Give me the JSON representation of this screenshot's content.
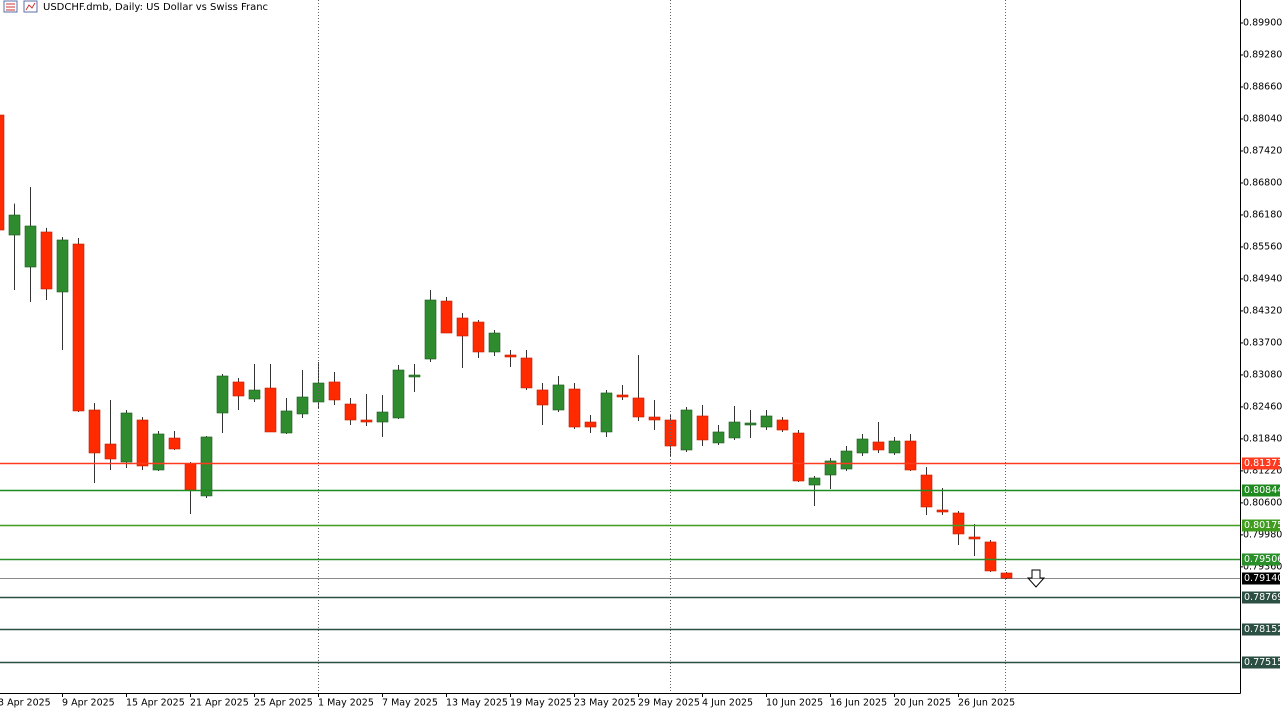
{
  "chart_data": {
    "type": "candlestick",
    "title": "USDCHF.dmb, Daily:  US Dollar vs Swiss Franc",
    "categories": [
      "3 Apr 2025",
      null,
      null,
      null,
      "9 Apr 2025",
      null,
      null,
      null,
      "15 Apr 2025",
      null,
      null,
      null,
      "21 Apr 2025",
      null,
      null,
      null,
      "25 Apr 2025",
      null,
      null,
      null,
      "1 May 2025",
      null,
      null,
      null,
      "7 May 2025",
      null,
      null,
      null,
      "13 May 2025",
      null,
      null,
      null,
      "19 May 2025",
      null,
      null,
      null,
      "23 May 2025",
      null,
      null,
      null,
      "29 May 2025",
      null,
      null,
      null,
      "4 Jun 2025",
      null,
      null,
      null,
      "10 Jun 2025",
      null,
      null,
      null,
      "16 Jun 2025",
      null,
      null,
      null,
      "20 Jun 2025",
      null,
      null,
      null,
      "26 Jun 2025",
      null,
      null,
      null
    ],
    "open": [
      0.88117,
      0.85791,
      0.85171,
      0.8585,
      0.84687,
      0.85617,
      0.824,
      0.81741,
      0.81392,
      0.82206,
      0.81237,
      0.81857,
      0.81353,
      0.80734,
      0.82342,
      0.82943,
      0.82613,
      0.82826,
      0.81954,
      0.82323,
      0.82555,
      0.82943,
      0.82516,
      0.82206,
      0.82167,
      0.82245,
      0.8304,
      0.83388,
      0.84512,
      0.84183,
      0.84105,
      0.83524,
      0.83466,
      0.83408,
      0.82788,
      0.824,
      0.82807,
      0.82167,
      0.81974,
      0.82691,
      0.82633,
      0.82264,
      0.82206,
      0.81625,
      0.82284,
      0.81761,
      0.81858,
      0.82109,
      0.8207,
      0.82206,
      0.81954,
      0.80946,
      0.8114,
      0.81256,
      0.81567,
      0.8178,
      0.81567,
      0.81799,
      0.8114,
      0.80462,
      0.80404,
      0.79939,
      0.79842,
      0.79241
    ],
    "high": [
      0.8814,
      0.864,
      0.86722,
      0.8593,
      0.85753,
      0.85733,
      0.82536,
      0.82594,
      0.824,
      0.82264,
      0.81993,
      0.81993,
      0.81392,
      0.81896,
      0.83098,
      0.8302,
      0.83292,
      0.83292,
      0.82633,
      0.83175,
      0.8333,
      0.83137,
      0.82633,
      0.8271,
      0.82691,
      0.83272,
      0.83292,
      0.84726,
      0.8459,
      0.8428,
      0.84144,
      0.8395,
      0.83563,
      0.83563,
      0.82923,
      0.83059,
      0.82923,
      0.82303,
      0.82788,
      0.82885,
      0.83466,
      0.82594,
      0.82303,
      0.82458,
      0.82497,
      0.82109,
      0.82477,
      0.824,
      0.824,
      0.82264,
      0.82012,
      0.81121,
      0.8147,
      0.81702,
      0.81935,
      0.82167,
      0.81877,
      0.81935,
      0.81295,
      0.80889,
      0.80443,
      0.80191,
      0.79881,
      0.79261
    ],
    "low": [
      0.8585,
      0.84726,
      0.84493,
      0.84532,
      0.83563,
      0.82361,
      0.80985,
      0.81237,
      0.81276,
      0.81237,
      0.81218,
      0.81625,
      0.80385,
      0.80695,
      0.81954,
      0.824,
      0.82555,
      0.81974,
      0.81935,
      0.82245,
      0.82439,
      0.82497,
      0.82109,
      0.8209,
      0.81877,
      0.82226,
      0.82749,
      0.8333,
      0.83892,
      0.83214,
      0.83408,
      0.83446,
      0.83233,
      0.82788,
      0.82109,
      0.82361,
      0.82032,
      0.81954,
      0.81877,
      0.82594,
      0.82187,
      0.82012,
      0.81508,
      0.81586,
      0.81702,
      0.81722,
      0.81819,
      0.81858,
      0.82012,
      0.81974,
      0.81005,
      0.8054,
      0.80869,
      0.81218,
      0.81508,
      0.81567,
      0.81528,
      0.81218,
      0.80365,
      0.80365,
      0.79784,
      0.79571,
      0.79261,
      0.79125
    ],
    "close": [
      0.85888,
      0.86179,
      0.85966,
      0.84745,
      0.85695,
      0.82381,
      0.81567,
      0.8145,
      0.82342,
      0.81315,
      0.81935,
      0.81644,
      0.8085,
      0.81877,
      0.83059,
      0.82671,
      0.82787,
      0.81974,
      0.82381,
      0.82652,
      0.82923,
      0.82594,
      0.82206,
      0.82167,
      0.82361,
      0.83175,
      0.83078,
      0.84532,
      0.83892,
      0.83834,
      0.83524,
      0.83892,
      0.83427,
      0.82827,
      0.82497,
      0.82885,
      0.8207,
      0.8207,
      0.8273,
      0.82652,
      0.82264,
      0.82206,
      0.81702,
      0.824,
      0.81819,
      0.81974,
      0.82167,
      0.82148,
      0.82284,
      0.82012,
      0.81024,
      0.81082,
      0.81412,
      0.81605,
      0.81838,
      0.81625,
      0.81799,
      0.81237,
      0.8052,
      0.80423,
      0.79997,
      0.799,
      0.7928,
      0.7914
    ],
    "up_color": "#2e8b2e",
    "down_color": "#ff2a00",
    "ylim": [
      0.76915,
      0.90346
    ],
    "yticks": [
      {
        "value": 0.899,
        "label": "0.89900"
      },
      {
        "value": 0.8928,
        "label": "0.89280"
      },
      {
        "value": 0.8866,
        "label": "0.88660"
      },
      {
        "value": 0.8804,
        "label": "0.88040"
      },
      {
        "value": 0.8742,
        "label": "0.87420"
      },
      {
        "value": 0.868,
        "label": "0.86800"
      },
      {
        "value": 0.8618,
        "label": "0.86180"
      },
      {
        "value": 0.8556,
        "label": "0.85560"
      },
      {
        "value": 0.8494,
        "label": "0.84940"
      },
      {
        "value": 0.8432,
        "label": "0.84320"
      },
      {
        "value": 0.837,
        "label": "0.83700"
      },
      {
        "value": 0.8308,
        "label": "0.83080"
      },
      {
        "value": 0.8246,
        "label": "0.82460"
      },
      {
        "value": 0.8184,
        "label": "0.81840"
      },
      {
        "value": 0.8122,
        "label": "0.81220"
      },
      {
        "value": 0.806,
        "label": "0.80600"
      },
      {
        "value": 0.7998,
        "label": "0.79980"
      },
      {
        "value": 0.7936,
        "label": "0.79360"
      }
    ],
    "levels": [
      {
        "value": 0.81373,
        "color": "#ff3b1f"
      },
      {
        "value": 0.80844,
        "color": "#1f8a1f"
      },
      {
        "value": 0.80175,
        "color": "#3f9c1f"
      },
      {
        "value": 0.79506,
        "color": "#2a8f2a"
      },
      {
        "value": 0.7914,
        "label": "0.79140",
        "color": "#000000"
      },
      {
        "value": 0.78769,
        "color": "#2c4f44"
      },
      {
        "value": 0.78152,
        "color": "#2c4f44"
      },
      {
        "value": 0.77515,
        "color": "#2c4f44"
      }
    ]
  }
}
